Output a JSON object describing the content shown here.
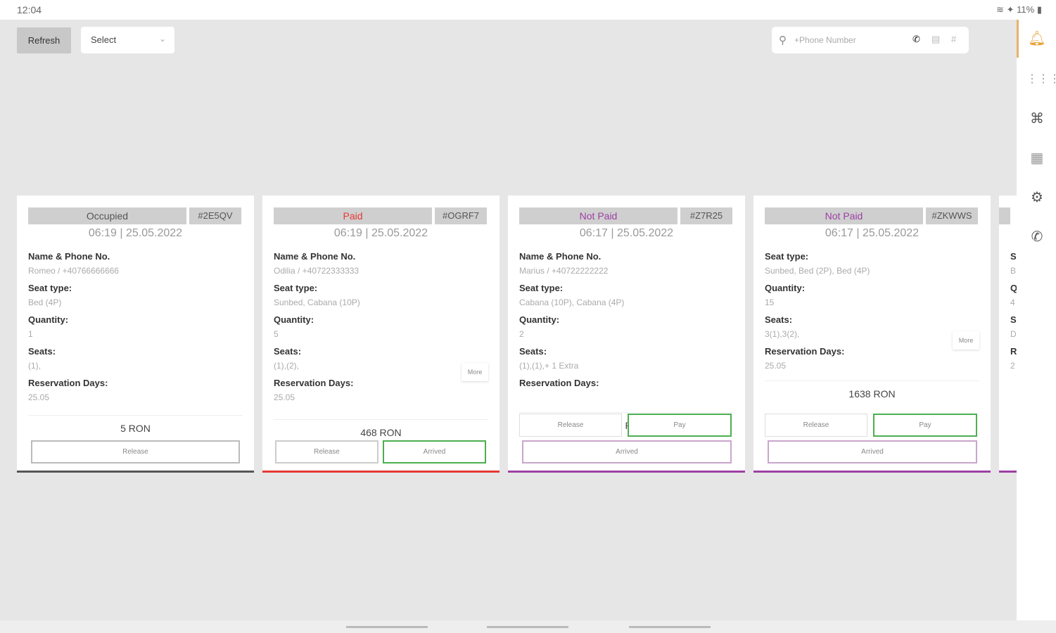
{
  "status_bar": {
    "time": "12:04",
    "battery": "11%"
  },
  "toolbar": {
    "refresh_label": "Refresh",
    "select_label": "Select",
    "search_placeholder": "+Phone Number"
  },
  "colors": {
    "occupied": "#555555",
    "paid": "#e53935",
    "not_paid": "#9c3fa3",
    "accent": "#e5b36a",
    "green": "#4caf50"
  },
  "sidebar": {
    "items": [
      "bell-icon",
      "seat-map-icon",
      "scan-icon",
      "qr-icon",
      "gear-icon",
      "phone-icon"
    ]
  },
  "cards": [
    {
      "status": "Occupied",
      "status_key": "occupied",
      "code": "#2E5QV",
      "datetime": "06:19 | 25.05.2022",
      "fields": [
        {
          "label": "Name & Phone No.",
          "value": "Romeo / +40766666666"
        },
        {
          "label": "Seat type:",
          "value": "Bed (4P)"
        },
        {
          "label": "Quantity:",
          "value": "1"
        },
        {
          "label": "Seats:",
          "value": "(1),"
        },
        {
          "label": "Reservation Days:",
          "value": "25.05"
        }
      ],
      "total": "5 RON",
      "buttons": {
        "release": "Release"
      }
    },
    {
      "status": "Paid",
      "status_key": "paid",
      "code": "#OGRF7",
      "datetime": "06:19 | 25.05.2022",
      "fields": [
        {
          "label": "Name & Phone No.",
          "value": "Odilia / +40722333333"
        },
        {
          "label": "Seat type:",
          "value": "Sunbed, Cabana (10P)"
        },
        {
          "label": "Quantity:",
          "value": "5"
        },
        {
          "label": "Seats:",
          "value": "(1),(2),"
        },
        {
          "label": "Reservation Days:",
          "value": "25.05"
        }
      ],
      "more": "More",
      "total": "468 RON",
      "buttons": {
        "release": "Release",
        "arrived": "Arrived"
      }
    },
    {
      "status": "Not Paid",
      "status_key": "not_paid",
      "code": "#Z7R25",
      "datetime": "06:17 | 25.05.2022",
      "fields": [
        {
          "label": "Name & Phone No.",
          "value": "Marius / +40722222222"
        },
        {
          "label": "Seat type:",
          "value": "Cabana (10P), Cabana (4P)"
        },
        {
          "label": "Quantity:",
          "value": "2"
        },
        {
          "label": "Seats:",
          "value": "(1),(1),+ 1 Extra"
        },
        {
          "label": "Reservation Days:",
          "value": ""
        }
      ],
      "total": "165 RON",
      "buttons": {
        "release": "Release",
        "pay": "Pay",
        "arrived": "Arrived"
      }
    },
    {
      "status": "Not Paid",
      "status_key": "not_paid",
      "code": "#ZKWWS",
      "datetime": "06:17 | 25.05.2022",
      "fields": [
        {
          "label": "Seat type:",
          "value": "Sunbed, Bed (2P), Bed (4P)"
        },
        {
          "label": "Quantity:",
          "value": "15"
        },
        {
          "label": "Seats:",
          "value": "3(1),3(2),"
        },
        {
          "label": "Reservation Days:",
          "value": "25.05"
        }
      ],
      "more": "More",
      "total": "1638 RON",
      "buttons": {
        "release": "Release",
        "pay": "Pay",
        "arrived": "Arrived"
      }
    },
    {
      "status": "",
      "status_key": "not_paid",
      "code": "",
      "datetime": "",
      "fields": [
        {
          "label": "S",
          "value": "B"
        },
        {
          "label": "Q",
          "value": "4"
        },
        {
          "label": "S",
          "value": "D"
        },
        {
          "label": "R",
          "value": "2"
        }
      ],
      "total": "",
      "buttons": {}
    }
  ]
}
